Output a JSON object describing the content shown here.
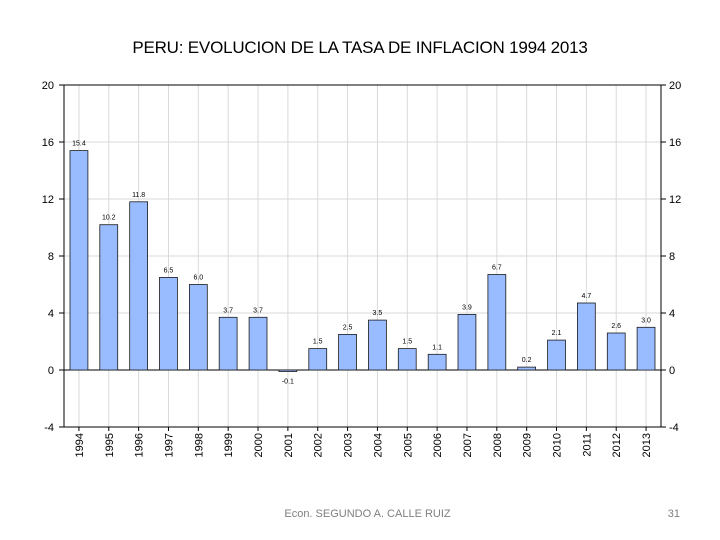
{
  "slide": {
    "author": "Econ. SEGUNDO A. CALLE RUIZ",
    "page_number": "31"
  },
  "chart_data": {
    "type": "bar",
    "title": "PERU: EVOLUCION DE LA TASA DE INFLACION 1994 2013",
    "xlabel": "",
    "ylabel": "",
    "categories": [
      "1994",
      "1995",
      "1996",
      "1997",
      "1998",
      "1999",
      "2000",
      "2001",
      "2002",
      "2003",
      "2004",
      "2005",
      "2006",
      "2007",
      "2008",
      "2009",
      "2010",
      "2011",
      "2012",
      "2013"
    ],
    "values": [
      15.4,
      10.2,
      11.8,
      6.5,
      6.0,
      3.7,
      3.7,
      -0.1,
      1.5,
      2.5,
      3.5,
      1.5,
      1.1,
      3.9,
      6.7,
      0.2,
      2.1,
      4.7,
      2.6,
      3.0
    ],
    "data_labels": [
      "15.4",
      "10.2",
      "11.8",
      "6.5",
      "6.0",
      "3.7",
      "3.7",
      "-0.1",
      "1.5",
      "2.5",
      "3.5",
      "1.5",
      "1.1",
      "3.9",
      "6.7",
      "0.2",
      "2.1",
      "4.7",
      "2.6",
      "3.0"
    ],
    "ylim": [
      -4,
      20
    ],
    "yticks": [
      -4,
      0,
      4,
      8,
      12,
      16,
      20
    ],
    "ytick_labels": [
      "-4",
      "0",
      "4",
      "8",
      "12",
      "16",
      "20"
    ],
    "grid": true,
    "legend": "none",
    "colors": {
      "bar_fill": "#99bbff",
      "bar_stroke": "#1a1a1a",
      "grid": "#d9d9d9",
      "axis": "#000000"
    }
  }
}
